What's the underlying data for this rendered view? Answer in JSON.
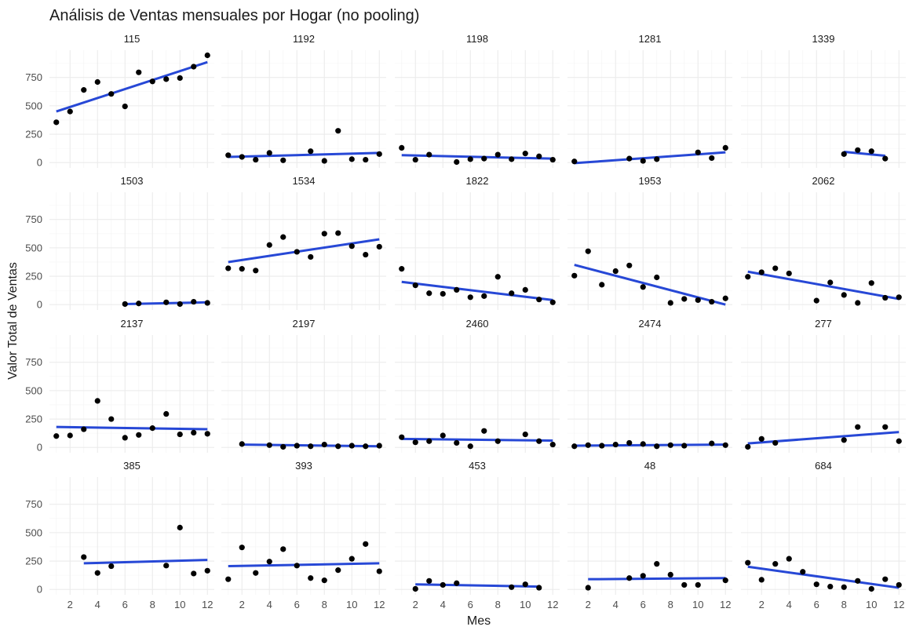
{
  "chart_data": {
    "type": "scatter",
    "title": "Análisis de Ventas mensuales por Hogar (no pooling)",
    "xlabel": "Mes",
    "ylabel": "Valor Total de Ventas",
    "xlim": [
      0.5,
      12.5
    ],
    "ylim": [
      -47,
      990
    ],
    "x_ticks": [
      2,
      4,
      6,
      8,
      10,
      12
    ],
    "y_ticks": [
      0,
      250,
      500,
      750
    ],
    "grid": true,
    "facets": [
      {
        "label": "115",
        "points": [
          [
            1,
            355
          ],
          [
            2,
            450
          ],
          [
            3,
            640
          ],
          [
            4,
            710
          ],
          [
            5,
            605
          ],
          [
            6,
            495
          ],
          [
            7,
            795
          ],
          [
            8,
            715
          ],
          [
            9,
            735
          ],
          [
            10,
            745
          ],
          [
            11,
            845
          ],
          [
            12,
            945
          ]
        ],
        "fit": [
          [
            1,
            450
          ],
          [
            12,
            885
          ]
        ]
      },
      {
        "label": "1192",
        "points": [
          [
            1,
            65
          ],
          [
            2,
            50
          ],
          [
            3,
            25
          ],
          [
            4,
            85
          ],
          [
            5,
            20
          ],
          [
            7,
            100
          ],
          [
            8,
            15
          ],
          [
            9,
            280
          ],
          [
            10,
            30
          ],
          [
            11,
            25
          ],
          [
            12,
            75
          ]
        ],
        "fit": [
          [
            1,
            50
          ],
          [
            12,
            85
          ]
        ]
      },
      {
        "label": "1198",
        "points": [
          [
            1,
            130
          ],
          [
            2,
            25
          ],
          [
            3,
            70
          ],
          [
            5,
            5
          ],
          [
            6,
            30
          ],
          [
            7,
            35
          ],
          [
            8,
            70
          ],
          [
            9,
            30
          ],
          [
            10,
            80
          ],
          [
            11,
            55
          ],
          [
            12,
            25
          ]
        ],
        "fit": [
          [
            1,
            65
          ],
          [
            12,
            35
          ]
        ]
      },
      {
        "label": "1281",
        "points": [
          [
            1,
            10
          ],
          [
            5,
            35
          ],
          [
            6,
            15
          ],
          [
            7,
            30
          ],
          [
            10,
            90
          ],
          [
            11,
            40
          ],
          [
            12,
            130
          ]
        ],
        "fit": [
          [
            1,
            -5
          ],
          [
            12,
            90
          ]
        ]
      },
      {
        "label": "1339",
        "points": [
          [
            8,
            75
          ],
          [
            9,
            110
          ],
          [
            10,
            100
          ],
          [
            11,
            35
          ]
        ],
        "fit": [
          [
            8,
            95
          ],
          [
            11,
            60
          ]
        ]
      },
      {
        "label": "1503",
        "points": [
          [
            6,
            5
          ],
          [
            7,
            10
          ],
          [
            9,
            20
          ],
          [
            10,
            5
          ],
          [
            11,
            25
          ],
          [
            12,
            15
          ]
        ],
        "fit": [
          [
            6,
            5
          ],
          [
            12,
            20
          ]
        ]
      },
      {
        "label": "1534",
        "points": [
          [
            1,
            320
          ],
          [
            2,
            315
          ],
          [
            3,
            300
          ],
          [
            4,
            525
          ],
          [
            5,
            595
          ],
          [
            6,
            465
          ],
          [
            7,
            420
          ],
          [
            8,
            625
          ],
          [
            9,
            630
          ],
          [
            10,
            515
          ],
          [
            11,
            440
          ],
          [
            12,
            510
          ]
        ],
        "fit": [
          [
            1,
            375
          ],
          [
            12,
            575
          ]
        ]
      },
      {
        "label": "1822",
        "points": [
          [
            1,
            315
          ],
          [
            2,
            170
          ],
          [
            3,
            100
          ],
          [
            4,
            95
          ],
          [
            5,
            130
          ],
          [
            6,
            65
          ],
          [
            7,
            75
          ],
          [
            8,
            245
          ],
          [
            9,
            100
          ],
          [
            10,
            130
          ],
          [
            11,
            45
          ],
          [
            12,
            20
          ]
        ],
        "fit": [
          [
            1,
            200
          ],
          [
            12,
            40
          ]
        ]
      },
      {
        "label": "1953",
        "points": [
          [
            1,
            255
          ],
          [
            2,
            470
          ],
          [
            3,
            175
          ],
          [
            4,
            295
          ],
          [
            5,
            345
          ],
          [
            6,
            155
          ],
          [
            7,
            240
          ],
          [
            8,
            15
          ],
          [
            9,
            50
          ],
          [
            10,
            40
          ],
          [
            11,
            25
          ],
          [
            12,
            55
          ]
        ],
        "fit": [
          [
            1,
            350
          ],
          [
            12,
            0
          ]
        ]
      },
      {
        "label": "2062",
        "points": [
          [
            1,
            245
          ],
          [
            2,
            285
          ],
          [
            3,
            320
          ],
          [
            4,
            275
          ],
          [
            6,
            35
          ],
          [
            7,
            195
          ],
          [
            8,
            85
          ],
          [
            9,
            15
          ],
          [
            10,
            190
          ],
          [
            11,
            60
          ],
          [
            12,
            65
          ]
        ],
        "fit": [
          [
            1,
            290
          ],
          [
            12,
            50
          ]
        ]
      },
      {
        "label": "2137",
        "points": [
          [
            1,
            100
          ],
          [
            2,
            105
          ],
          [
            3,
            160
          ],
          [
            4,
            410
          ],
          [
            5,
            250
          ],
          [
            6,
            85
          ],
          [
            7,
            110
          ],
          [
            8,
            170
          ],
          [
            9,
            295
          ],
          [
            10,
            115
          ],
          [
            11,
            130
          ],
          [
            12,
            120
          ]
        ],
        "fit": [
          [
            1,
            180
          ],
          [
            12,
            160
          ]
        ]
      },
      {
        "label": "2197",
        "points": [
          [
            2,
            30
          ],
          [
            4,
            20
          ],
          [
            5,
            5
          ],
          [
            6,
            15
          ],
          [
            7,
            10
          ],
          [
            8,
            25
          ],
          [
            9,
            10
          ],
          [
            10,
            15
          ],
          [
            11,
            10
          ],
          [
            12,
            15
          ]
        ],
        "fit": [
          [
            2,
            25
          ],
          [
            12,
            10
          ]
        ]
      },
      {
        "label": "2460",
        "points": [
          [
            1,
            90
          ],
          [
            2,
            45
          ],
          [
            3,
            55
          ],
          [
            4,
            105
          ],
          [
            5,
            40
          ],
          [
            6,
            10
          ],
          [
            7,
            145
          ],
          [
            8,
            55
          ],
          [
            10,
            115
          ],
          [
            11,
            55
          ],
          [
            12,
            25
          ]
        ],
        "fit": [
          [
            1,
            75
          ],
          [
            12,
            60
          ]
        ]
      },
      {
        "label": "2474",
        "points": [
          [
            1,
            10
          ],
          [
            2,
            20
          ],
          [
            3,
            15
          ],
          [
            4,
            25
          ],
          [
            5,
            40
          ],
          [
            6,
            30
          ],
          [
            7,
            10
          ],
          [
            8,
            20
          ],
          [
            9,
            15
          ],
          [
            11,
            35
          ],
          [
            12,
            20
          ]
        ],
        "fit": [
          [
            1,
            15
          ],
          [
            12,
            25
          ]
        ]
      },
      {
        "label": "277",
        "points": [
          [
            1,
            5
          ],
          [
            2,
            75
          ],
          [
            3,
            40
          ],
          [
            8,
            65
          ],
          [
            9,
            180
          ],
          [
            11,
            180
          ],
          [
            12,
            55
          ]
        ],
        "fit": [
          [
            1,
            35
          ],
          [
            12,
            135
          ]
        ]
      },
      {
        "label": "385",
        "points": [
          [
            3,
            285
          ],
          [
            4,
            145
          ],
          [
            5,
            205
          ],
          [
            9,
            210
          ],
          [
            10,
            545
          ],
          [
            11,
            140
          ],
          [
            12,
            165
          ]
        ],
        "fit": [
          [
            3,
            230
          ],
          [
            12,
            260
          ]
        ]
      },
      {
        "label": "393",
        "points": [
          [
            1,
            90
          ],
          [
            2,
            370
          ],
          [
            3,
            145
          ],
          [
            4,
            245
          ],
          [
            5,
            355
          ],
          [
            6,
            210
          ],
          [
            7,
            100
          ],
          [
            8,
            80
          ],
          [
            9,
            170
          ],
          [
            10,
            270
          ],
          [
            11,
            400
          ],
          [
            12,
            160
          ]
        ],
        "fit": [
          [
            1,
            205
          ],
          [
            12,
            230
          ]
        ]
      },
      {
        "label": "453",
        "points": [
          [
            2,
            5
          ],
          [
            3,
            75
          ],
          [
            4,
            40
          ],
          [
            5,
            55
          ],
          [
            9,
            20
          ],
          [
            10,
            45
          ],
          [
            11,
            15
          ]
        ],
        "fit": [
          [
            2,
            45
          ],
          [
            11,
            25
          ]
        ]
      },
      {
        "label": "48",
        "points": [
          [
            2,
            15
          ],
          [
            5,
            100
          ],
          [
            6,
            120
          ],
          [
            7,
            225
          ],
          [
            8,
            130
          ],
          [
            9,
            40
          ],
          [
            10,
            40
          ],
          [
            12,
            80
          ]
        ],
        "fit": [
          [
            2,
            90
          ],
          [
            12,
            100
          ]
        ]
      },
      {
        "label": "684",
        "points": [
          [
            1,
            235
          ],
          [
            2,
            85
          ],
          [
            3,
            225
          ],
          [
            4,
            270
          ],
          [
            5,
            155
          ],
          [
            6,
            45
          ],
          [
            7,
            25
          ],
          [
            8,
            20
          ],
          [
            9,
            75
          ],
          [
            10,
            5
          ],
          [
            11,
            90
          ],
          [
            12,
            40
          ]
        ],
        "fit": [
          [
            1,
            200
          ],
          [
            12,
            15
          ]
        ]
      }
    ],
    "colors": {
      "points": "#000000",
      "fit": "#2748d6",
      "grid": "#ebebeb"
    }
  }
}
